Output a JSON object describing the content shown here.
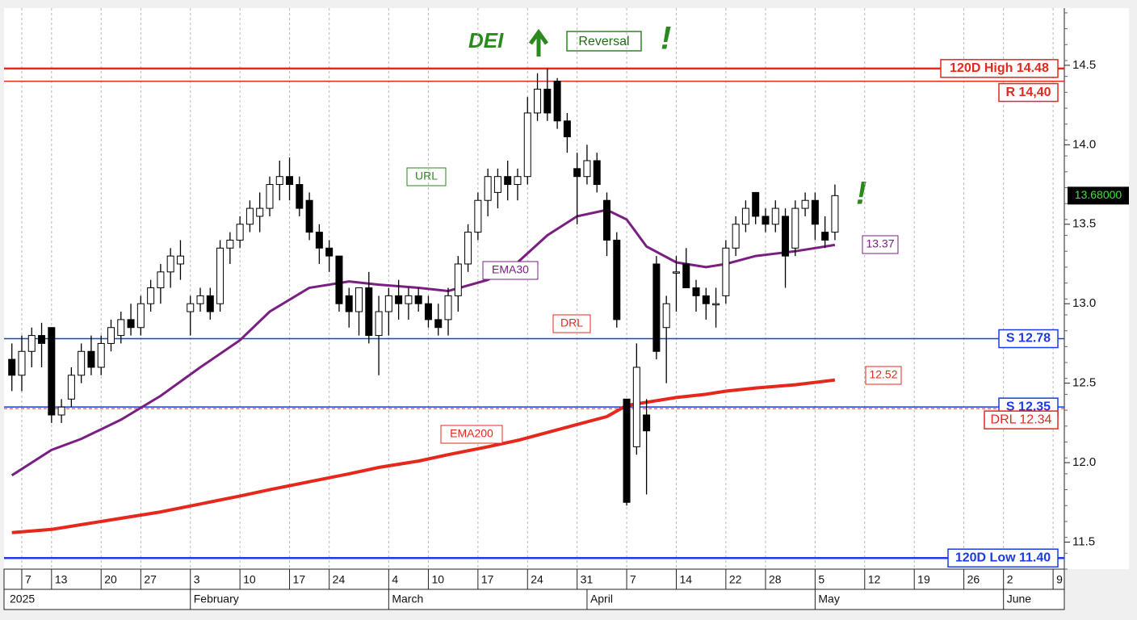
{
  "chart_data": {
    "type": "candlestick",
    "categories": [
      "2025-01-06",
      "2025-01-07",
      "2025-01-08",
      "2025-01-10",
      "2025-01-13",
      "2025-01-14",
      "2025-01-15",
      "2025-01-16",
      "2025-01-17",
      "2025-01-21",
      "2025-01-22",
      "2025-01-23",
      "2025-01-24",
      "2025-01-27",
      "2025-01-28",
      "2025-01-29",
      "2025-01-30",
      "2025-01-31",
      "2025-02-03",
      "2025-02-04",
      "2025-02-05",
      "2025-02-06",
      "2025-02-07",
      "2025-02-10",
      "2025-02-11",
      "2025-02-12",
      "2025-02-13",
      "2025-02-14",
      "2025-02-18",
      "2025-02-19",
      "2025-02-20",
      "2025-02-21",
      "2025-02-24",
      "2025-02-25",
      "2025-02-26",
      "2025-02-27",
      "2025-02-28",
      "2025-03-03",
      "2025-03-04",
      "2025-03-05",
      "2025-03-06",
      "2025-03-07",
      "2025-03-10",
      "2025-03-11",
      "2025-03-12",
      "2025-03-13",
      "2025-03-14",
      "2025-03-17",
      "2025-03-18",
      "2025-03-19",
      "2025-03-20",
      "2025-03-21",
      "2025-03-24",
      "2025-03-25",
      "2025-03-26",
      "2025-03-27",
      "2025-03-28",
      "2025-03-31",
      "2025-04-01",
      "2025-04-02",
      "2025-04-03",
      "2025-04-04",
      "2025-04-07",
      "2025-04-08",
      "2025-04-09",
      "2025-04-10",
      "2025-04-11",
      "2025-04-14",
      "2025-04-15",
      "2025-04-16",
      "2025-04-17",
      "2025-04-21",
      "2025-04-22",
      "2025-04-23",
      "2025-04-24",
      "2025-04-25",
      "2025-04-28",
      "2025-04-29",
      "2025-04-30",
      "2025-05-01",
      "2025-05-02",
      "2025-05-05",
      "2025-05-06",
      "2025-05-07",
      "2025-05-08",
      "2025-05-09",
      "2025-05-12",
      "2025-05-13",
      "2025-05-14",
      "2025-05-15",
      "2025-05-16",
      "2025-05-19",
      "2025-05-20",
      "2025-05-21",
      "2025-05-22",
      "2025-05-23",
      "2025-05-27",
      "2025-05-28",
      "2025-05-29",
      "2025-05-30",
      "2025-06-02",
      "2025-06-03",
      "2025-06-04",
      "2025-06-05",
      "2025-06-06",
      "2025-06-09",
      "2025-06-10"
    ],
    "open": [
      12.65,
      12.55,
      12.7,
      12.8,
      12.85,
      12.3,
      12.4,
      12.55,
      12.7,
      12.6,
      12.75,
      12.8,
      12.9,
      12.85,
      13.0,
      13.1,
      13.2,
      13.25,
      12.95,
      13.0,
      13.05,
      13.0,
      13.35,
      13.4,
      13.5,
      13.55,
      13.6,
      13.75,
      13.8,
      13.75,
      13.65,
      13.45,
      13.35,
      13.3,
      13.05,
      12.95,
      13.1,
      12.8,
      12.95,
      13.05,
      13.0,
      13.05,
      13.0,
      12.9,
      12.9,
      13.05,
      13.25,
      13.45,
      13.65,
      13.7,
      13.8,
      13.75,
      13.8,
      14.2,
      14.35,
      14.4,
      14.15,
      13.85,
      13.8,
      13.9,
      13.65,
      13.4,
      12.4,
      12.1,
      12.3,
      13.25,
      12.85,
      13.2,
      13.25,
      13.1,
      13.05,
      13.0,
      13.05,
      13.35,
      13.5,
      13.7,
      13.55,
      13.5,
      13.55,
      13.35,
      13.6,
      13.65,
      13.45,
      13.45,
      null,
      null,
      null,
      null,
      null,
      null,
      null,
      null,
      null,
      null,
      null,
      null,
      null,
      null,
      null,
      null,
      null,
      null,
      null,
      null,
      null,
      null,
      null
    ],
    "high": [
      12.75,
      12.8,
      12.85,
      12.88,
      12.85,
      12.4,
      12.6,
      12.75,
      12.8,
      12.8,
      12.9,
      12.95,
      13.0,
      13.05,
      13.15,
      13.25,
      13.35,
      13.4,
      13.05,
      13.1,
      13.1,
      13.4,
      13.45,
      13.55,
      13.65,
      13.7,
      13.8,
      13.9,
      13.92,
      13.8,
      13.7,
      13.5,
      13.4,
      13.3,
      13.1,
      13.1,
      13.2,
      13.05,
      13.1,
      13.15,
      13.1,
      13.1,
      13.05,
      13.0,
      13.1,
      13.3,
      13.5,
      13.7,
      13.85,
      13.85,
      13.9,
      13.85,
      14.3,
      14.45,
      14.48,
      14.42,
      14.2,
      13.95,
      14.0,
      13.95,
      13.7,
      13.45,
      12.4,
      12.75,
      12.4,
      13.3,
      13.05,
      13.3,
      13.35,
      13.15,
      13.1,
      13.1,
      13.4,
      13.55,
      13.65,
      13.7,
      13.6,
      13.65,
      13.6,
      13.65,
      13.7,
      13.7,
      13.55,
      13.75,
      null,
      null,
      null,
      null,
      null,
      null,
      null,
      null,
      null,
      null,
      null,
      null,
      null,
      null,
      null,
      null,
      null,
      null,
      null,
      null,
      null,
      null,
      null
    ],
    "low": [
      12.45,
      12.45,
      12.6,
      12.6,
      12.25,
      12.25,
      12.35,
      12.5,
      12.55,
      12.55,
      12.7,
      12.75,
      12.8,
      12.8,
      12.95,
      13.0,
      13.1,
      13.15,
      12.8,
      12.95,
      12.9,
      12.95,
      13.25,
      13.35,
      13.45,
      13.45,
      13.55,
      13.65,
      13.65,
      13.55,
      13.4,
      13.25,
      13.2,
      12.95,
      12.85,
      12.8,
      12.75,
      12.55,
      12.8,
      12.9,
      12.9,
      12.95,
      12.85,
      12.8,
      12.8,
      12.95,
      13.2,
      13.4,
      13.55,
      13.6,
      13.65,
      13.65,
      13.75,
      14.15,
      14.15,
      14.1,
      13.95,
      13.5,
      13.75,
      13.7,
      13.3,
      12.85,
      11.73,
      12.05,
      11.8,
      12.65,
      12.5,
      12.95,
      13.1,
      12.95,
      12.9,
      12.85,
      13.0,
      13.3,
      13.45,
      13.5,
      13.45,
      13.45,
      13.1,
      13.3,
      13.55,
      13.4,
      13.35,
      13.4,
      null,
      null,
      null,
      null,
      null,
      null,
      null,
      null,
      null,
      null,
      null,
      null,
      null,
      null,
      null,
      null,
      null,
      null,
      null,
      null,
      null,
      null,
      null
    ],
    "close": [
      12.55,
      12.7,
      12.8,
      12.75,
      12.3,
      12.35,
      12.55,
      12.7,
      12.6,
      12.75,
      12.85,
      12.9,
      12.85,
      13.0,
      13.1,
      13.2,
      13.3,
      13.3,
      13.0,
      13.05,
      12.95,
      13.35,
      13.4,
      13.5,
      13.6,
      13.6,
      13.75,
      13.8,
      13.75,
      13.6,
      13.45,
      13.35,
      13.3,
      13.0,
      12.95,
      13.1,
      12.8,
      12.95,
      13.05,
      13.0,
      13.05,
      13.0,
      12.9,
      12.85,
      13.05,
      13.25,
      13.45,
      13.65,
      13.8,
      13.8,
      13.75,
      13.8,
      14.2,
      14.35,
      14.2,
      14.15,
      14.05,
      13.8,
      13.9,
      13.75,
      13.4,
      12.9,
      11.75,
      12.6,
      12.2,
      12.7,
      13.0,
      13.2,
      13.1,
      13.05,
      13.0,
      13.0,
      13.35,
      13.5,
      13.6,
      13.55,
      13.5,
      13.6,
      13.3,
      13.6,
      13.65,
      13.5,
      13.4,
      13.68,
      null,
      null,
      null,
      null,
      null,
      null,
      null,
      null,
      null,
      null,
      null,
      null,
      null,
      null,
      null,
      null,
      null,
      null,
      null,
      null,
      null,
      null,
      null
    ],
    "lines": {
      "x": [
        "2025-01-06",
        "2025-01-13",
        "2025-01-16",
        "2025-01-23",
        "2025-01-29",
        "2025-02-04",
        "2025-02-10",
        "2025-02-13",
        "2025-02-20",
        "2025-02-26",
        "2025-03-03",
        "2025-03-07",
        "2025-03-12",
        "2025-03-18",
        "2025-03-21",
        "2025-03-26",
        "2025-03-31",
        "2025-04-03",
        "2025-04-07",
        "2025-04-09",
        "2025-04-14",
        "2025-04-17",
        "2025-04-22",
        "2025-04-25",
        "2025-05-01",
        "2025-05-07"
      ],
      "series": [
        {
          "name": "EMA30",
          "color": "#7a1f82",
          "values": [
            11.92,
            12.08,
            12.15,
            12.27,
            12.42,
            12.6,
            12.77,
            12.95,
            13.1,
            13.14,
            13.12,
            13.1,
            13.08,
            13.15,
            13.26,
            13.43,
            13.55,
            13.59,
            13.53,
            13.36,
            13.26,
            13.23,
            13.25,
            13.3,
            13.33,
            13.37
          ]
        },
        {
          "name": "EMA200",
          "color": "#e5271c",
          "values": [
            11.56,
            11.58,
            11.61,
            11.65,
            11.69,
            11.74,
            11.79,
            11.83,
            11.88,
            11.93,
            11.97,
            12.01,
            12.05,
            12.1,
            12.14,
            12.19,
            12.24,
            12.29,
            12.36,
            12.38,
            12.41,
            12.43,
            12.45,
            12.47,
            12.49,
            12.52
          ]
        }
      ]
    },
    "levels": [
      {
        "value": 14.48,
        "label": "120D High 14.48",
        "color": "#e5271c"
      },
      {
        "value": 14.4,
        "label": "R 14,40",
        "color": "#e5271c"
      },
      {
        "value": 12.78,
        "label": "S 12.78",
        "color": "#1b3be6"
      },
      {
        "value": 12.35,
        "label": "S 12.35",
        "color": "#1b3be6"
      },
      {
        "value": 12.34,
        "label": "DRL 12.34",
        "color": "#e5271c"
      },
      {
        "value": 11.4,
        "label": "120D Low 11.40",
        "color": "#1b3be6"
      }
    ],
    "last_price": {
      "value": 13.68,
      "label": "13.68000"
    },
    "annotations": {
      "symbol": "DEI",
      "signal": "Reversal",
      "alert": "!",
      "url": "URL",
      "drl": "DRL"
    },
    "ylim": [
      11.33,
      14.86
    ],
    "yticks": [
      11.5,
      {
        "value": 12,
        "label": "12.0"
      },
      12.5,
      {
        "value": 13,
        "label": "13.0"
      },
      13.5,
      {
        "value": 14,
        "label": "14.0"
      },
      14.5
    ],
    "xticks": [
      {
        "value": "2025-01-07",
        "label": "7"
      },
      {
        "value": "2025-01-13",
        "label": "13"
      },
      {
        "value": "2025-01-20",
        "label": "20"
      },
      {
        "value": "2025-01-27",
        "label": "27"
      },
      {
        "value": "2025-02-03",
        "label": "3"
      },
      {
        "value": "2025-02-10",
        "label": "10"
      },
      {
        "value": "2025-02-17",
        "label": "17"
      },
      {
        "value": "2025-02-24",
        "label": "24"
      },
      {
        "value": "2025-03-04",
        "label": "4"
      },
      {
        "value": "2025-03-10",
        "label": "10"
      },
      {
        "value": "2025-03-17",
        "label": "17"
      },
      {
        "value": "2025-03-24",
        "label": "24"
      },
      {
        "value": "2025-03-31",
        "label": "31"
      },
      {
        "value": "2025-04-07",
        "label": "7"
      },
      {
        "value": "2025-04-14",
        "label": "14"
      },
      {
        "value": "2025-04-22",
        "label": "22"
      },
      {
        "value": "2025-04-28",
        "label": "28"
      },
      {
        "value": "2025-05-05",
        "label": "5"
      },
      {
        "value": "2025-05-12",
        "label": "12"
      },
      {
        "value": "2025-05-19",
        "label": "19"
      },
      {
        "value": "2025-05-26",
        "label": "26"
      },
      {
        "value": "2025-06-02",
        "label": "2"
      },
      {
        "value": "2025-06-09",
        "label": "9"
      }
    ],
    "month_labels": [
      {
        "value": "2025-01-06",
        "label": "2025"
      },
      {
        "value": "2025-02-03",
        "label": "February"
      },
      {
        "value": "2025-03-04",
        "label": "March"
      },
      {
        "value": "2025-04-01",
        "label": "April"
      },
      {
        "value": "2025-05-05",
        "label": "May"
      },
      {
        "value": "2025-06-02",
        "label": "June"
      }
    ],
    "grid": true,
    "up_color": "#ffffff",
    "down_color": "#000000"
  }
}
